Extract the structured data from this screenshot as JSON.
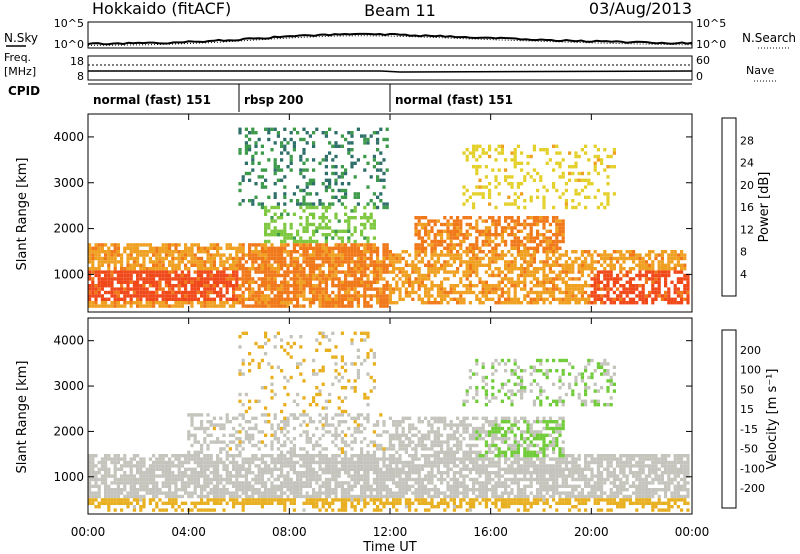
{
  "header": {
    "title_left": "Hokkaido (fitACF)",
    "title_center": "Beam 11",
    "title_right": "03/Aug/2013"
  },
  "top_panels": {
    "nsky_label": "N.Sky",
    "nsky_ticks": [
      "10^5",
      "10^0"
    ],
    "nsearch_label": "N.Search",
    "nsearch_ticks": [
      "10^5",
      "10^0"
    ],
    "freq_label_1": "Freq.",
    "freq_label_2": "[MHz]",
    "freq_ticks": [
      "18",
      "8"
    ],
    "nave_label": "Nave",
    "nave_ticks": [
      "60",
      "0"
    ],
    "cpid_label": "CPID",
    "cpid_segments": [
      {
        "label": "normal (fast) 151",
        "start_hour": 0,
        "end_hour": 6
      },
      {
        "label": "rbsp 200",
        "start_hour": 6,
        "end_hour": 12
      },
      {
        "label": "normal (fast) 151",
        "start_hour": 12,
        "end_hour": 24
      }
    ]
  },
  "axes": {
    "ylabel": "Slant Range [km]",
    "xlabel": "Time UT",
    "y_ticks": [
      "1000",
      "2000",
      "3000",
      "4000"
    ],
    "x_ticks": [
      "00:00",
      "04:00",
      "08:00",
      "12:00",
      "16:00",
      "20:00",
      "00:00"
    ]
  },
  "colorbars": {
    "power_label": "Power [dB]",
    "power_ticks": [
      "28",
      "24",
      "20",
      "16",
      "12",
      "8",
      "4"
    ],
    "velocity_label": "Velocity [m s⁻¹]",
    "velocity_ticks": [
      "200",
      "100",
      "50",
      "15",
      "-15",
      "-50",
      "-100",
      "-200"
    ]
  },
  "colors": {
    "power_scale": [
      "#1010ee",
      "#1e3e9a",
      "#2f6f6a",
      "#3c9a4a",
      "#7ec840",
      "#e4d02a",
      "#f0a020",
      "#f07818",
      "#f04818",
      "#e00000"
    ],
    "velocity_scale": [
      "#e00000",
      "#ff5a00",
      "#ff9400",
      "#e8b020",
      "#c4c4bc",
      "#70cc38",
      "#3a8a50",
      "#2a4a9a",
      "#1010cc"
    ]
  },
  "chart_data": [
    {
      "type": "heatmap",
      "name": "Power [dB]",
      "xlim": [
        0,
        24
      ],
      "ylim": [
        180,
        4500
      ],
      "zlim": [
        0,
        32
      ],
      "blobs": [
        {
          "t0": 0.0,
          "t1": 6.0,
          "r0": 250,
          "r1": 1700,
          "value": 22,
          "density": 0.75
        },
        {
          "t0": 0.0,
          "t1": 6.0,
          "r0": 400,
          "r1": 1100,
          "value": 28,
          "density": 0.8
        },
        {
          "t0": 6.0,
          "t1": 12.0,
          "r0": 250,
          "r1": 1700,
          "value": 24,
          "density": 0.8
        },
        {
          "t0": 6.0,
          "t1": 12.0,
          "r0": 2400,
          "r1": 4200,
          "value": 9,
          "density": 0.25
        },
        {
          "t0": 7.0,
          "t1": 11.5,
          "r0": 1700,
          "r1": 2500,
          "value": 14,
          "density": 0.35
        },
        {
          "t0": 12.0,
          "t1": 24.0,
          "r0": 300,
          "r1": 1500,
          "value": 22,
          "density": 0.65
        },
        {
          "t0": 13.0,
          "t1": 19.0,
          "r0": 1500,
          "r1": 2300,
          "value": 24,
          "density": 0.6
        },
        {
          "t0": 15.0,
          "t1": 21.0,
          "r0": 2400,
          "r1": 3800,
          "value": 18,
          "density": 0.25
        },
        {
          "t0": 20.0,
          "t1": 24.0,
          "r0": 300,
          "r1": 1100,
          "value": 28,
          "density": 0.6
        }
      ]
    },
    {
      "type": "heatmap",
      "name": "Velocity [m s-1]",
      "xlim": [
        0,
        24
      ],
      "ylim": [
        180,
        4500
      ],
      "zlim": [
        -250,
        250
      ],
      "blobs": [
        {
          "t0": 0.0,
          "t1": 24.0,
          "r0": 300,
          "r1": 1500,
          "value": 0,
          "density": 0.75
        },
        {
          "t0": 4.0,
          "t1": 12.0,
          "r0": 1500,
          "r1": 2400,
          "value": -5,
          "density": 0.4
        },
        {
          "t0": 6.0,
          "t1": 11.5,
          "r0": 2400,
          "r1": 4200,
          "value": -40,
          "density": 0.15
        },
        {
          "t0": 12.0,
          "t1": 19.0,
          "r0": 1500,
          "r1": 2300,
          "value": 0,
          "density": 0.6
        },
        {
          "t0": 15.5,
          "t1": 19.0,
          "r0": 1400,
          "r1": 2200,
          "value": 35,
          "density": 0.35
        },
        {
          "t0": 15.0,
          "t1": 21.0,
          "r0": 2500,
          "r1": 3600,
          "value": 30,
          "density": 0.3
        },
        {
          "t0": 0.0,
          "t1": 24.0,
          "r0": 180,
          "r1": 450,
          "value": -60,
          "density": 0.35
        }
      ]
    }
  ]
}
